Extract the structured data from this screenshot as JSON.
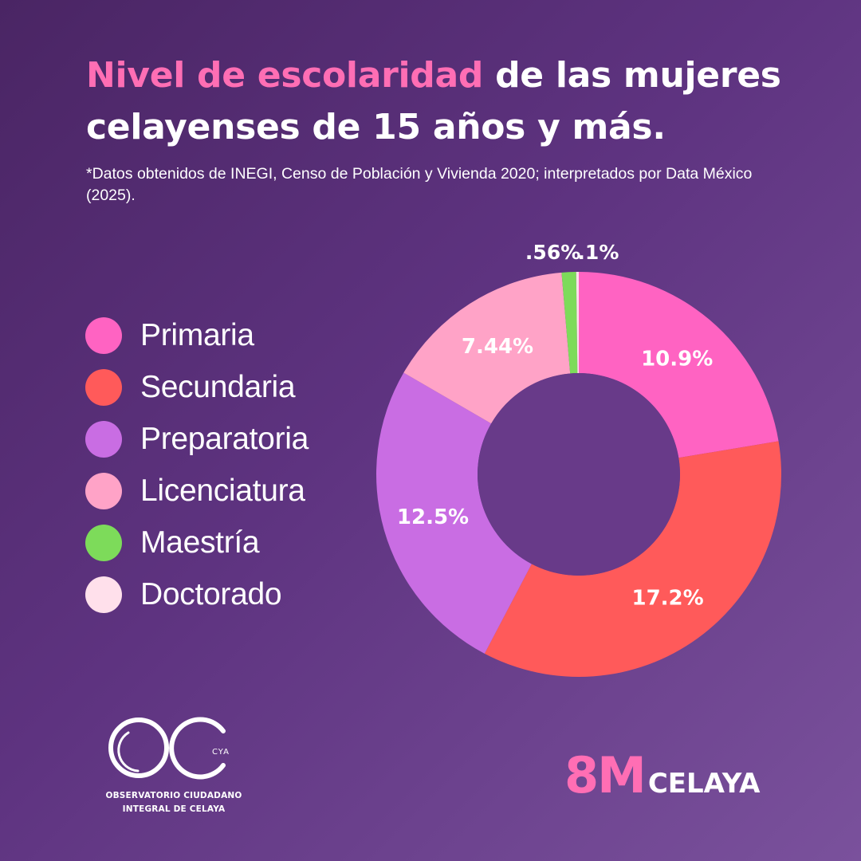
{
  "title": {
    "highlight": "Nivel de escolaridad",
    "rest": " de las mujeres celayenses de 15 años y más."
  },
  "subtitle": "*Datos obtenidos de INEGI, Censo de Población y Vivienda 2020; interpretados por Data México (2025).",
  "chart_data": {
    "type": "pie",
    "variant": "donut",
    "title": "Nivel de escolaridad de las mujeres celayenses de 15 años y más.",
    "categories": [
      "Primaria",
      "Secundaria",
      "Preparatoria",
      "Licenciatura",
      "Maestría",
      "Doctorado"
    ],
    "values": [
      10.9,
      17.2,
      12.5,
      7.44,
      0.56,
      0.1
    ],
    "value_labels": [
      "10.9%",
      "17.2%",
      "12.5%",
      "7.44%",
      ".56%",
      ".1%"
    ],
    "colors": [
      "#ff63c2",
      "#ff5a5a",
      "#c96de3",
      "#ffa3c7",
      "#7ddb5a",
      "#ffe0eb"
    ],
    "center_color": "#683a89",
    "legend_position": "left"
  },
  "logo": {
    "mark": "OC",
    "suffix": "CYA",
    "line1": "OBSERVATORIO CIUDADANO",
    "line2": "INTEGRAL DE CELAYA"
  },
  "brand": {
    "big": "8M",
    "small": "CELAYA"
  }
}
